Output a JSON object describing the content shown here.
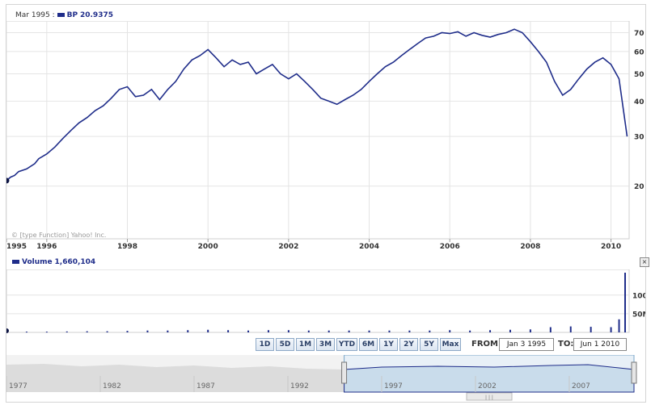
{
  "header": {
    "date": "Mar 1995 :",
    "symbol": "BP",
    "value": "20.9375"
  },
  "copyright": "© [type Function] Yahoo! Inc.",
  "volume_legend": {
    "label": "Volume",
    "value": "1,660,104"
  },
  "close_icon": "×",
  "range_buttons": [
    "1D",
    "5D",
    "1M",
    "3M",
    "YTD",
    "6M",
    "1Y",
    "2Y",
    "5Y",
    "Max"
  ],
  "from_label": "FROM:",
  "from_value": "Jan 3 1995",
  "to_label": "TO:",
  "to_value": "Jun 1 2010",
  "scrollbar_grip": "| | |",
  "colors": {
    "line": "#1f2d8a",
    "grid": "#e4e4e4",
    "nav_fill": "#c9dceb",
    "nav_gray": "#dcdcdc"
  },
  "chart_data": [
    {
      "type": "line",
      "series": [
        {
          "name": "BP",
          "x": [
            1995.0,
            1995.1,
            1995.2,
            1995.3,
            1995.5,
            1995.7,
            1995.8,
            1996.0,
            1996.2,
            1996.4,
            1996.6,
            1996.8,
            1997.0,
            1997.2,
            1997.4,
            1997.6,
            1997.8,
            1998.0,
            1998.2,
            1998.4,
            1998.6,
            1998.8,
            1999.0,
            1999.2,
            1999.4,
            1999.6,
            1999.8,
            2000.0,
            2000.2,
            2000.4,
            2000.6,
            2000.8,
            2001.0,
            2001.2,
            2001.4,
            2001.6,
            2001.8,
            2002.0,
            2002.2,
            2002.4,
            2002.6,
            2002.8,
            2003.0,
            2003.2,
            2003.4,
            2003.6,
            2003.8,
            2004.0,
            2004.2,
            2004.4,
            2004.6,
            2004.8,
            2005.0,
            2005.2,
            2005.4,
            2005.6,
            2005.8,
            2006.0,
            2006.2,
            2006.4,
            2006.6,
            2006.8,
            2007.0,
            2007.2,
            2007.4,
            2007.6,
            2007.8,
            2008.0,
            2008.2,
            2008.4,
            2008.6,
            2008.8,
            2009.0,
            2009.2,
            2009.4,
            2009.6,
            2009.8,
            2010.0,
            2010.2,
            2010.4
          ],
          "y": [
            20.9,
            21.5,
            21.8,
            22.5,
            23.0,
            24.0,
            25.0,
            26.0,
            27.5,
            29.5,
            31.5,
            33.5,
            35.0,
            37.0,
            38.5,
            41.0,
            44.0,
            45.0,
            41.5,
            42.0,
            44.0,
            40.5,
            44.0,
            47.0,
            52.0,
            56.0,
            58.0,
            61.0,
            57.0,
            53.0,
            56.0,
            54.0,
            55.0,
            50.0,
            52.0,
            54.0,
            50.0,
            48.0,
            50.0,
            47.0,
            44.0,
            41.0,
            40.0,
            39.0,
            40.5,
            42.0,
            44.0,
            47.0,
            50.0,
            53.0,
            55.0,
            58.0,
            61.0,
            64.0,
            67.0,
            68.0,
            70.0,
            69.5,
            70.5,
            68.0,
            70.0,
            68.5,
            67.5,
            69.0,
            70.0,
            72.0,
            70.0,
            65.0,
            60.0,
            55.0,
            47.0,
            42.0,
            44.0,
            48.0,
            52.0,
            55.0,
            57.0,
            54.0,
            48.0,
            30.0
          ]
        }
      ],
      "x_ticks": [
        "1995",
        "1996",
        "1998",
        "2000",
        "2002",
        "2004",
        "2006",
        "2008",
        "2010"
      ],
      "y_ticks": [
        "20",
        "30",
        "40",
        "50",
        "60",
        "70"
      ],
      "y_scale": "log",
      "ylim": [
        13,
        75
      ],
      "xlim": [
        1995.0,
        2010.45
      ],
      "grid": true
    },
    {
      "type": "bar",
      "series": [
        {
          "name": "Volume",
          "x": [
            1995.0,
            1995.5,
            1996.0,
            1996.5,
            1997.0,
            1997.5,
            1998.0,
            1998.5,
            1999.0,
            1999.5,
            2000.0,
            2000.5,
            2001.0,
            2001.5,
            2002.0,
            2002.5,
            2003.0,
            2003.5,
            2004.0,
            2004.5,
            2005.0,
            2005.5,
            2006.0,
            2006.5,
            2007.0,
            2007.5,
            2008.0,
            2008.5,
            2009.0,
            2009.5,
            2010.0,
            2010.2,
            2010.35
          ],
          "values": [
            1.7,
            2,
            2,
            2.5,
            3,
            3,
            4,
            5,
            5,
            6,
            7,
            6,
            5,
            6,
            6,
            5,
            5,
            5,
            5,
            5,
            5,
            5,
            6,
            5,
            6,
            7,
            8,
            14,
            16,
            15,
            14,
            35,
            160
          ]
        }
      ],
      "y_ticks": [
        "50M",
        "100M"
      ],
      "ylim": [
        0,
        160
      ],
      "unit": "M"
    },
    {
      "type": "area",
      "x_ticks": [
        "1977",
        "1982",
        "1987",
        "1992",
        "1997",
        "2002",
        "2007"
      ],
      "xlim": [
        1977,
        2010.45
      ],
      "selection": [
        1995.0,
        2010.45
      ]
    }
  ]
}
